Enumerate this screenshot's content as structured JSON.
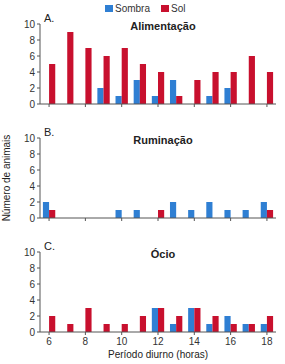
{
  "chart_data": [
    {
      "type": "bar",
      "panel": "A.",
      "title": "Alimentação",
      "legend": "top",
      "tick_labels": "y",
      "x": [
        6,
        7,
        8,
        9,
        10,
        11,
        12,
        13,
        14,
        15,
        16,
        17,
        18
      ],
      "xlim": [
        5.5,
        18.5
      ],
      "xticks": [
        6,
        8,
        10,
        12,
        14,
        16,
        18
      ],
      "ylim": [
        0,
        10
      ],
      "yticks": [
        0,
        2,
        4,
        6,
        8,
        10
      ],
      "series": [
        {
          "name": "Sombra",
          "color": "#2f7fd3",
          "values": [
            0,
            0,
            0,
            2,
            1,
            3,
            1,
            3,
            0,
            1,
            2,
            0,
            0
          ]
        },
        {
          "name": "Sol",
          "color": "#c8102e",
          "values": [
            5,
            9,
            7,
            6,
            7,
            5,
            4,
            1,
            3,
            4,
            4,
            6,
            4
          ]
        }
      ]
    },
    {
      "type": "bar",
      "panel": "B.",
      "title": "Ruminação",
      "y_label": "Número de animais",
      "tick_labels": "y",
      "x": [
        6,
        7,
        8,
        9,
        10,
        11,
        12,
        13,
        14,
        15,
        16,
        17,
        18
      ],
      "xlim": [
        5.5,
        18.5
      ],
      "xticks": [
        6,
        8,
        10,
        12,
        14,
        16,
        18
      ],
      "ylim": [
        0,
        10
      ],
      "yticks": [
        0,
        2,
        4,
        6,
        8,
        10
      ],
      "series": [
        {
          "name": "Sombra",
          "color": "#2f7fd3",
          "values": [
            2,
            0,
            0,
            0,
            1,
            1,
            0,
            2,
            1,
            2,
            1,
            1,
            2
          ]
        },
        {
          "name": "Sol",
          "color": "#c8102e",
          "values": [
            1,
            0,
            0,
            0,
            0,
            0,
            1,
            0,
            0,
            0,
            0,
            0,
            1
          ]
        }
      ]
    },
    {
      "type": "bar",
      "panel": "C.",
      "title": "Ócio",
      "x_label": "Período diurno (horas)",
      "x": [
        6,
        7,
        8,
        9,
        10,
        11,
        12,
        13,
        14,
        15,
        16,
        17,
        18
      ],
      "xlim": [
        5.5,
        18.5
      ],
      "xticks": [
        6,
        8,
        10,
        12,
        14,
        16,
        18
      ],
      "ylim": [
        0,
        10
      ],
      "yticks": [
        0,
        2,
        4,
        6,
        8,
        10
      ],
      "series": [
        {
          "name": "Sombra",
          "color": "#2f7fd3",
          "values": [
            0,
            0,
            0,
            0,
            0,
            0,
            3,
            1,
            3,
            1,
            2,
            1,
            1
          ]
        },
        {
          "name": "Sol",
          "color": "#c8102e",
          "values": [
            2,
            1,
            3,
            1,
            1,
            2,
            3,
            2,
            3,
            2,
            1,
            1,
            2
          ]
        }
      ]
    }
  ]
}
